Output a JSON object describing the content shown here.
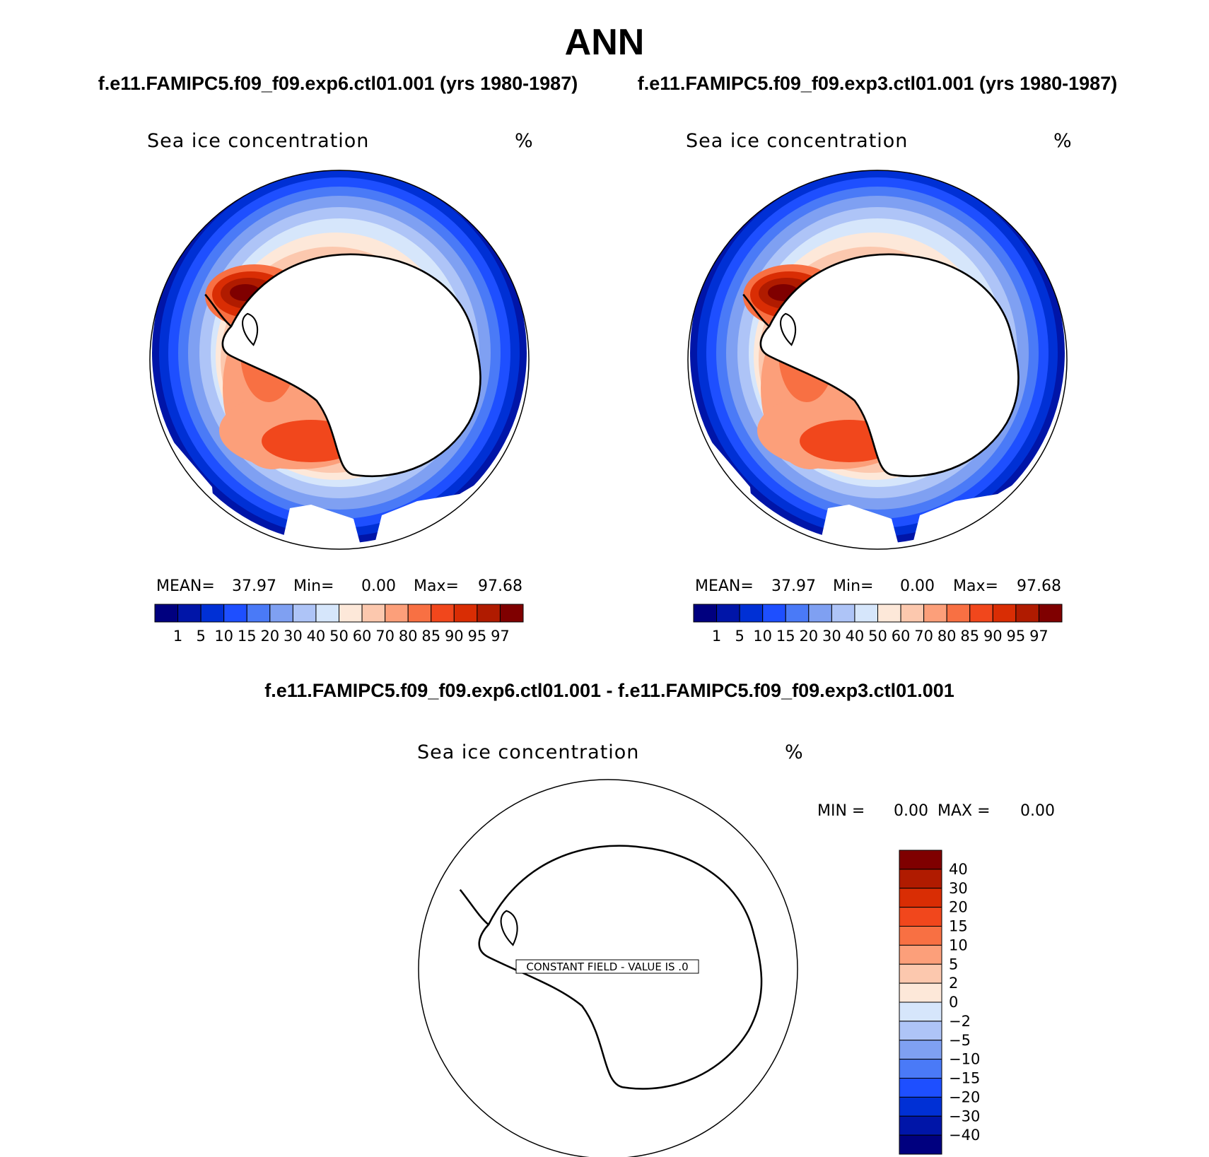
{
  "figure": {
    "title": "ANN",
    "case1_title": "f.e11.FAMIPC5.f09_f09.exp6.ctl01.001 (yrs 1980-1987)",
    "case2_title": "f.e11.FAMIPC5.f09_f09.exp3.ctl01.001 (yrs 1980-1987)",
    "diff_title": "f.e11.FAMIPC5.f09_f09.exp6.ctl01.001 - f.e11.FAMIPC5.f09_f09.exp3.ctl01.001"
  },
  "chart_data": [
    {
      "type": "heatmap",
      "projection": "south-polar-stereographic",
      "title": "Sea ice concentration",
      "units": "%",
      "stats": {
        "mean_label": "MEAN=",
        "mean": "37.97",
        "min_label": "Min=",
        "min": "0.00",
        "max_label": "Max=",
        "max": "97.68"
      },
      "colorbar": {
        "orientation": "horizontal",
        "levels": [
          "1",
          "5",
          "10",
          "15",
          "20",
          "30",
          "40",
          "50",
          "60",
          "70",
          "80",
          "85",
          "90",
          "95",
          "97"
        ],
        "colors": [
          "#00007f",
          "#0015a8",
          "#0030d5",
          "#1e4fff",
          "#4a7af7",
          "#7fa0f2",
          "#aec4f7",
          "#d6e6fb",
          "#fde8d9",
          "#fcc8ae",
          "#fc9f7a",
          "#f87043",
          "#f1471c",
          "#d92d04",
          "#b01b00",
          "#7f0000"
        ]
      }
    },
    {
      "type": "heatmap",
      "projection": "south-polar-stereographic",
      "title": "Sea ice concentration",
      "units": "%",
      "stats": {
        "mean_label": "MEAN=",
        "mean": "37.97",
        "min_label": "Min=",
        "min": "0.00",
        "max_label": "Max=",
        "max": "97.68"
      },
      "colorbar": {
        "orientation": "horizontal",
        "levels": [
          "1",
          "5",
          "10",
          "15",
          "20",
          "30",
          "40",
          "50",
          "60",
          "70",
          "80",
          "85",
          "90",
          "95",
          "97"
        ],
        "colors": [
          "#00007f",
          "#0015a8",
          "#0030d5",
          "#1e4fff",
          "#4a7af7",
          "#7fa0f2",
          "#aec4f7",
          "#d6e6fb",
          "#fde8d9",
          "#fcc8ae",
          "#fc9f7a",
          "#f87043",
          "#f1471c",
          "#d92d04",
          "#b01b00",
          "#7f0000"
        ]
      }
    },
    {
      "type": "heatmap",
      "projection": "south-polar-stereographic",
      "title": "Sea ice concentration",
      "units": "%",
      "note": "CONSTANT FIELD - VALUE IS .0",
      "stats": {
        "min_label": "MIN =",
        "min": "0.00",
        "max_label": "MAX =",
        "max": "0.00"
      },
      "colorbar": {
        "orientation": "vertical",
        "levels": [
          "40",
          "30",
          "20",
          "15",
          "10",
          "5",
          "2",
          "0",
          "−2",
          "−5",
          "−10",
          "−15",
          "−20",
          "−30",
          "−40"
        ],
        "colors": [
          "#7f0000",
          "#b01b00",
          "#d92d04",
          "#f1471c",
          "#f87043",
          "#fc9f7a",
          "#fcc8ae",
          "#fde8d9",
          "#d6e6fb",
          "#aec4f7",
          "#7fa0f2",
          "#4a7af7",
          "#1e4fff",
          "#0030d5",
          "#0015a8",
          "#00007f"
        ]
      }
    }
  ]
}
